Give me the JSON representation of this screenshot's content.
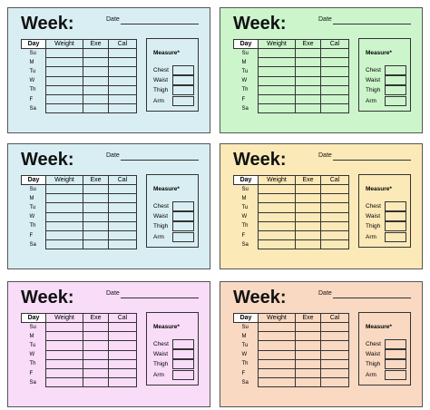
{
  "cards": [
    {
      "bg": "#d9eef2"
    },
    {
      "bg": "#ccf5cc"
    },
    {
      "bg": "#d9eef2"
    },
    {
      "bg": "#fce9b8"
    },
    {
      "bg": "#f8dcf8"
    },
    {
      "bg": "#fad9c3"
    }
  ],
  "template": {
    "week_label": "Week:",
    "date_label": "Date",
    "columns": [
      "Day",
      "Weight",
      "Exe",
      "Cal"
    ],
    "days": [
      "Su",
      "M",
      "Tu",
      "W",
      "Th",
      "F",
      "Sa"
    ],
    "measure_title": "Measure*",
    "measures": [
      "Chest",
      "Waist",
      "Thigh",
      "Arm"
    ]
  }
}
